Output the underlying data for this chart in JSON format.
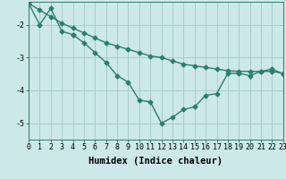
{
  "line1_x": [
    0,
    1,
    2,
    3,
    4,
    5,
    6,
    7,
    8,
    9,
    10,
    11,
    12,
    13,
    14,
    15,
    16,
    17,
    18,
    19,
    20,
    21,
    22,
    23
  ],
  "line1_y": [
    -1.35,
    -1.55,
    -1.75,
    -1.95,
    -2.1,
    -2.25,
    -2.4,
    -2.55,
    -2.65,
    -2.75,
    -2.85,
    -2.95,
    -3.0,
    -3.1,
    -3.2,
    -3.25,
    -3.3,
    -3.35,
    -3.4,
    -3.42,
    -3.42,
    -3.42,
    -3.42,
    -3.48
  ],
  "line2_x": [
    0,
    1,
    2,
    3,
    4,
    4,
    5,
    6,
    7,
    8,
    9,
    10,
    11,
    12,
    13,
    14,
    15,
    16,
    17,
    18,
    19,
    20,
    21,
    22,
    23
  ],
  "line2_y": [
    -1.35,
    -2.0,
    -1.5,
    -2.2,
    -2.3,
    -2.3,
    -2.55,
    -2.85,
    -3.15,
    -3.55,
    -3.75,
    -4.3,
    -4.35,
    -5.0,
    -4.82,
    -4.58,
    -4.5,
    -4.15,
    -4.1,
    -3.48,
    -3.48,
    -3.55,
    -3.42,
    -3.35,
    -3.5
  ],
  "line_color": "#2d7d6e",
  "bg_color": "#cce8e8",
  "grid_color": "#aacccc",
  "xlabel": "Humidex (Indice chaleur)",
  "xlim": [
    0,
    23
  ],
  "ylim": [
    -5.5,
    -1.3
  ],
  "xticks": [
    0,
    1,
    2,
    3,
    4,
    5,
    6,
    7,
    8,
    9,
    10,
    11,
    12,
    13,
    14,
    15,
    16,
    17,
    18,
    19,
    20,
    21,
    22,
    23
  ],
  "yticks": [
    -5,
    -4,
    -3,
    -2
  ],
  "marker": "D",
  "markersize": 2.5,
  "linewidth": 1.0,
  "xlabel_fontsize": 7.5,
  "tick_fontsize": 6
}
